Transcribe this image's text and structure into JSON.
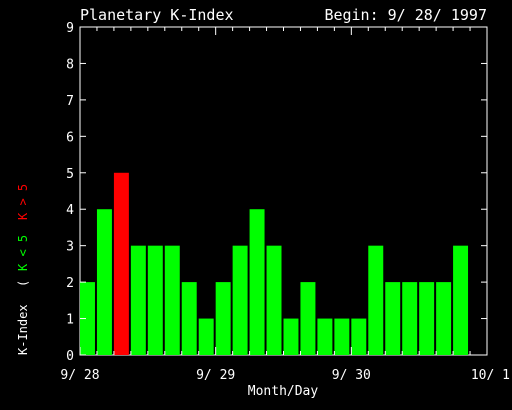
{
  "chart_data": {
    "type": "bar",
    "title": "Planetary K-Index",
    "begin_label": "Begin: 9/ 28/ 1997",
    "xlabel": "Month/Day",
    "ylabel": "K-Index",
    "legend_green": "K < 5",
    "legend_red": "K > 5",
    "legend_open": "(",
    "ylim": [
      0,
      9
    ],
    "yticks": [
      "0",
      "1",
      "2",
      "3",
      "4",
      "5",
      "6",
      "7",
      "8",
      "9"
    ],
    "xticks": [
      "9/ 28",
      "9/ 29",
      "9/ 30",
      "10/ 1"
    ],
    "values": [
      2,
      4,
      5,
      3,
      3,
      3,
      2,
      1,
      2,
      3,
      4,
      3,
      1,
      2,
      1,
      1,
      1,
      3,
      2,
      2,
      2,
      2,
      3
    ],
    "threshold": 5,
    "colors": {
      "low": "#00ff00",
      "high": "#ff0000",
      "axis": "#ffffff",
      "background": "#000000"
    }
  }
}
